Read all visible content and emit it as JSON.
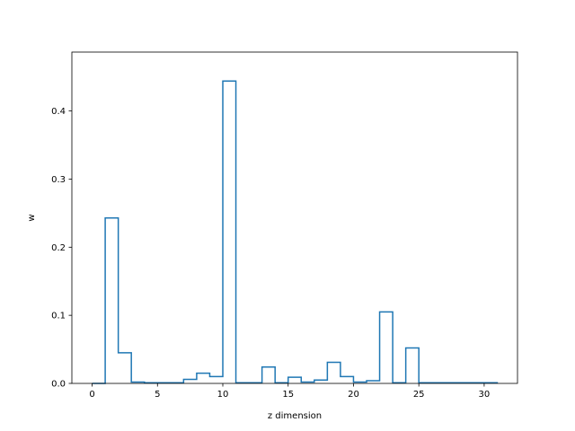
{
  "chart_data": {
    "type": "bar",
    "style": "step-histogram",
    "xlabel": "z dimension",
    "ylabel": "w",
    "xlim": [
      -1.55,
      32.55
    ],
    "ylim": [
      0,
      0.4865
    ],
    "x_ticks": [
      0,
      5,
      10,
      15,
      20,
      25,
      30
    ],
    "y_ticks": [
      0.0,
      0.1,
      0.2,
      0.3,
      0.4
    ],
    "y_tick_labels": [
      "0.0",
      "0.1",
      "0.2",
      "0.3",
      "0.4"
    ],
    "grid": false,
    "color": "#1f77b4",
    "x": [
      0,
      1,
      2,
      3,
      4,
      5,
      6,
      7,
      8,
      9,
      10,
      11,
      12,
      13,
      14,
      15,
      16,
      17,
      18,
      19,
      20,
      21,
      22,
      23,
      24,
      25,
      26,
      27,
      28,
      29,
      30
    ],
    "values": [
      0.0,
      0.243,
      0.045,
      0.002,
      0.001,
      0.001,
      0.001,
      0.006,
      0.015,
      0.01,
      0.444,
      0.001,
      0.001,
      0.024,
      0.001,
      0.009,
      0.002,
      0.005,
      0.031,
      0.01,
      0.002,
      0.004,
      0.105,
      0.001,
      0.052,
      0.001,
      0.001,
      0.001,
      0.001,
      0.001,
      0.001
    ]
  }
}
